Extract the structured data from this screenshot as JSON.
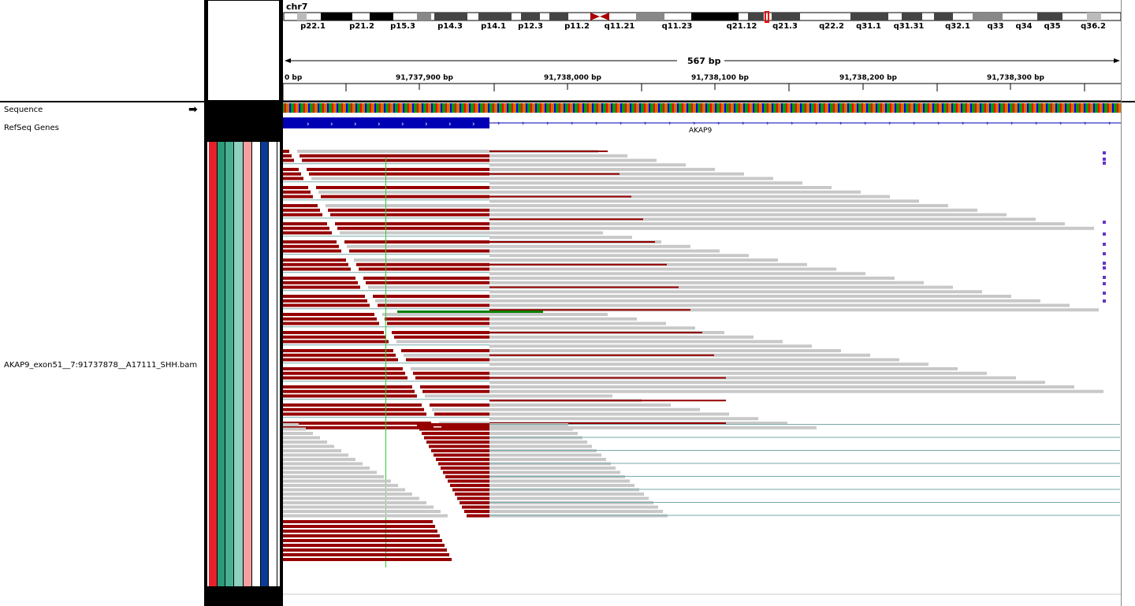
{
  "chromosome": "chr7",
  "cytobands": [
    "p22.1",
    "p21.2",
    "p15.3",
    "p14.3",
    "p14.1",
    "p12.3",
    "p11.2",
    "q11.21",
    "q11.23",
    "q21.12",
    "q21.3",
    "q22.2",
    "q31.1",
    "q31.31",
    "q32.1",
    "q33",
    "q34",
    "q35",
    "q36.2"
  ],
  "ruler": {
    "span_label": "567 bp",
    "partial_left": "0 bp",
    "ticks": [
      "91,737,900 bp",
      "91,738,000 bp",
      "91,738,100 bp",
      "91,738,200 bp",
      "91,738,300 bp"
    ]
  },
  "tracks": {
    "sequence": "Sequence",
    "refseq": "RefSeq Genes",
    "bam": "AKAP9_exon51__7:91737878__A17111_SHH.bam"
  },
  "gene": {
    "name": "AKAP9"
  },
  "colors": {
    "exon": "#0000b4",
    "read_gray": "#c8c8c8",
    "read_red": "#960000",
    "read_green": "#008000",
    "attr": [
      "#e8202a",
      "#2a9a78",
      "#48b090",
      "#90d0c0",
      "#f4a0a0",
      "#ffffff",
      "#0a3c96",
      "#ffffff"
    ]
  },
  "icons": {
    "sequence_arrow": "right-arrow-icon"
  }
}
